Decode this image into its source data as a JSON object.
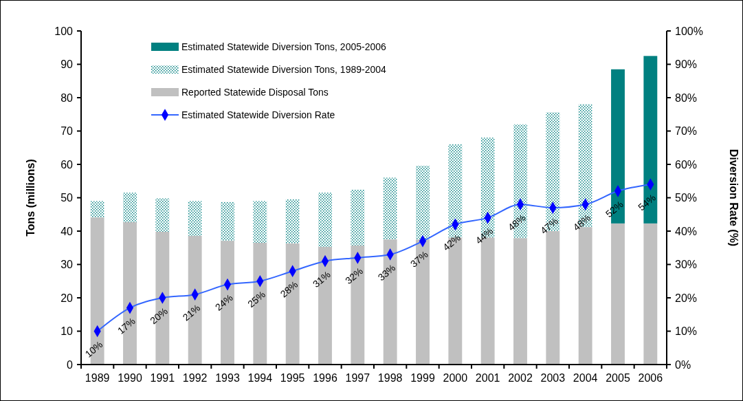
{
  "chart_data": {
    "type": "bar",
    "stacked": true,
    "categories": [
      "1989",
      "1990",
      "1991",
      "1992",
      "1993",
      "1994",
      "1995",
      "1996",
      "1997",
      "1998",
      "1999",
      "2000",
      "2001",
      "2002",
      "2003",
      "2004",
      "2005",
      "2006"
    ],
    "series": [
      {
        "name": "Reported Statewide Disposal Tons",
        "color": "#c0c0c0",
        "values": [
          44.1,
          42.7,
          39.8,
          38.6,
          37.1,
          36.5,
          36.3,
          35.3,
          35.7,
          37.5,
          37.5,
          38.1,
          38.1,
          37.9,
          40.0,
          41.2,
          42.3,
          42.3
        ]
      },
      {
        "name": "Estimated Statewide Diversion Tons, 1989-2004",
        "color": "#008080",
        "line_style": "dotted",
        "values": [
          4.9,
          8.8,
          10.0,
          10.4,
          11.6,
          12.5,
          13.2,
          16.2,
          16.7,
          18.5,
          22.1,
          27.9,
          29.9,
          34.1,
          35.6,
          36.8,
          null,
          null
        ]
      },
      {
        "name": "Estimated Statewide Diversion Tons, 2005-2006",
        "color": "#008080",
        "values": [
          null,
          null,
          null,
          null,
          null,
          null,
          null,
          null,
          null,
          null,
          null,
          null,
          null,
          null,
          null,
          null,
          46.2,
          50.2
        ]
      },
      {
        "name": "Estimated Statewide Diversion Rate",
        "type": "line",
        "axis": "y2",
        "color": "#0000ff",
        "marker": "diamond",
        "values": [
          10,
          17,
          20,
          21,
          24,
          25,
          28,
          31,
          32,
          33,
          37,
          42,
          44,
          48,
          47,
          48,
          52,
          54
        ],
        "value_labels": [
          "10%",
          "17%",
          "20%",
          "21%",
          "24%",
          "25%",
          "28%",
          "31%",
          "32%",
          "33%",
          "37%",
          "42%",
          "44%",
          "48%",
          "47%",
          "48%",
          "52%",
          "54%"
        ]
      }
    ],
    "ylabel": "Tons (millions)",
    "y2label": "Diversion Rate (%)",
    "ylim": [
      0,
      100
    ],
    "yticks": [
      0,
      10,
      20,
      30,
      40,
      50,
      60,
      70,
      80,
      90,
      100
    ],
    "y2lim": [
      0,
      100
    ],
    "y2ticks": [
      {
        "value": 0,
        "label": "0%"
      },
      {
        "value": 10,
        "label": "10%"
      },
      {
        "value": 20,
        "label": "20%"
      },
      {
        "value": 30,
        "label": "30%"
      },
      {
        "value": 40,
        "label": "40%"
      },
      {
        "value": 50,
        "label": "50%"
      },
      {
        "value": 60,
        "label": "60%"
      },
      {
        "value": 70,
        "label": "70%"
      },
      {
        "value": 80,
        "label": "80%"
      },
      {
        "value": 90,
        "label": "90%"
      },
      {
        "value": 100,
        "label": "100%"
      }
    ],
    "legend": "top left",
    "grid": false
  }
}
